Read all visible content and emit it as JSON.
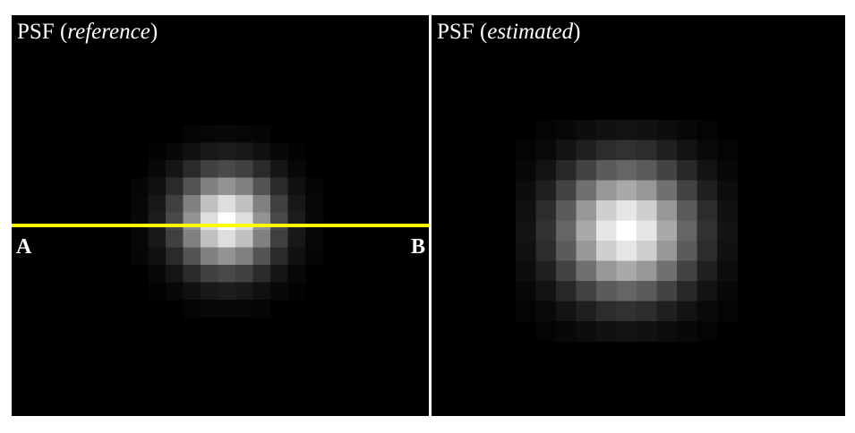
{
  "panels": [
    {
      "title_prefix": "PSF (",
      "title_italic": "reference",
      "title_suffix": ")",
      "psf_peak": 1.0,
      "psf_sigma_pixels": 1.9
    },
    {
      "title_prefix": "PSF (",
      "title_italic": "estimated",
      "title_suffix": ")",
      "psf_peak": 1.0,
      "psf_sigma_pixels": 2.2
    }
  ],
  "profile_line": {
    "color": "#ffff00",
    "start_label": "A",
    "end_label": "B"
  },
  "colors": {
    "background": "#000000",
    "divider": "#ffffff",
    "text": "#ffffff"
  }
}
